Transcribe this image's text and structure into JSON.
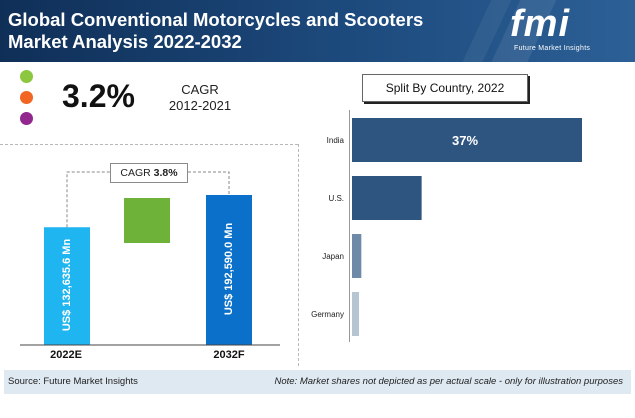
{
  "header": {
    "title": "Global Conventional Motorcycles and Scooters Market Analysis 2022-2032",
    "logo_text": "fmi",
    "logo_subtitle": "Future Market Insights"
  },
  "kpi": {
    "value": "3.2%",
    "label_line1": "CAGR",
    "label_line2": "2012-2021",
    "dot_colors": [
      "#8dc63f",
      "#f26522",
      "#92278f"
    ]
  },
  "chart_data": [
    {
      "type": "bar",
      "categories": [
        "2022E",
        "2032F"
      ],
      "values": [
        132635.6,
        192590.0
      ],
      "value_labels": [
        "US$ 132,635.6 Mn",
        "US$ 192,590.0 Mn"
      ],
      "annotation": {
        "label": "CAGR",
        "value": "3.8%"
      },
      "colors": [
        "#1fb5f0",
        "#0a70c9",
        "#6fb23a"
      ]
    },
    {
      "type": "bar",
      "orientation": "horizontal",
      "title": "Split By Country, 2022",
      "categories": [
        "India",
        "U.S.",
        "Japan",
        "Germany"
      ],
      "values": [
        37,
        7,
        1.5,
        1
      ],
      "value_labels": [
        "37%",
        "",
        "",
        ""
      ],
      "colors": [
        "#2d5580",
        "#2d5580",
        "#6f8aa8",
        "#b7c4d2"
      ]
    }
  ],
  "footer": {
    "source": "Source: Future Market Insights",
    "note": "Note: Market shares not depicted as per actual scale - only for illustration purposes"
  }
}
